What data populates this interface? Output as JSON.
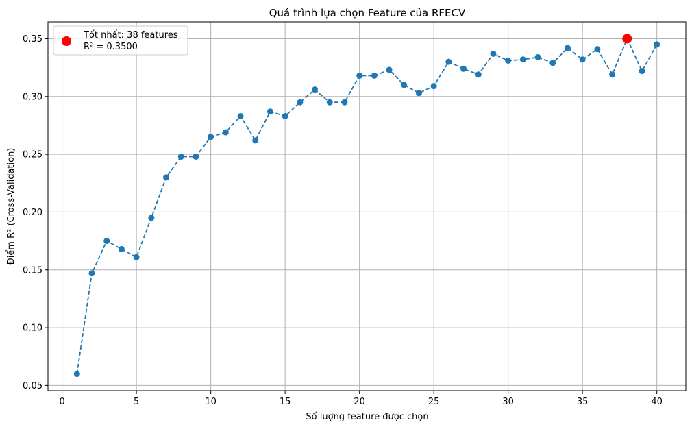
{
  "chart_data": {
    "type": "line",
    "title": "Quá trình lựa chọn Feature của RFECV",
    "xlabel": "Số lượng feature được chọn",
    "ylabel": "Điểm R² (Cross-Validation)",
    "xlim": [
      -0.95,
      41.95
    ],
    "ylim": [
      0.0455,
      0.3645
    ],
    "xticks": [
      0,
      5,
      10,
      15,
      20,
      25,
      30,
      35,
      40
    ],
    "yticks": [
      0.05,
      0.1,
      0.15,
      0.2,
      0.25,
      0.3,
      0.35
    ],
    "grid": true,
    "legend_position": "top-left",
    "series": [
      {
        "color": "#1f77b4",
        "line_style": "dashed",
        "marker": "circle",
        "x": [
          1,
          2,
          3,
          4,
          5,
          6,
          7,
          8,
          9,
          10,
          11,
          12,
          13,
          14,
          15,
          16,
          17,
          18,
          19,
          20,
          21,
          22,
          23,
          24,
          25,
          26,
          27,
          28,
          29,
          30,
          31,
          32,
          33,
          34,
          35,
          36,
          37,
          38,
          39,
          40
        ],
        "y": [
          0.06,
          0.147,
          0.175,
          0.168,
          0.161,
          0.195,
          0.23,
          0.248,
          0.248,
          0.265,
          0.269,
          0.283,
          0.262,
          0.287,
          0.283,
          0.295,
          0.306,
          0.295,
          0.295,
          0.318,
          0.318,
          0.323,
          0.31,
          0.303,
          0.309,
          0.33,
          0.324,
          0.319,
          0.337,
          0.331,
          0.332,
          0.334,
          0.329,
          0.342,
          0.332,
          0.341,
          0.319,
          0.35,
          0.322,
          0.345
        ]
      }
    ],
    "best_point": {
      "x": 38,
      "y": 0.35,
      "color": "#ff0000",
      "legend_line1": "Tốt nhất: 38 features",
      "legend_line2": "R² = 0.3500"
    }
  }
}
